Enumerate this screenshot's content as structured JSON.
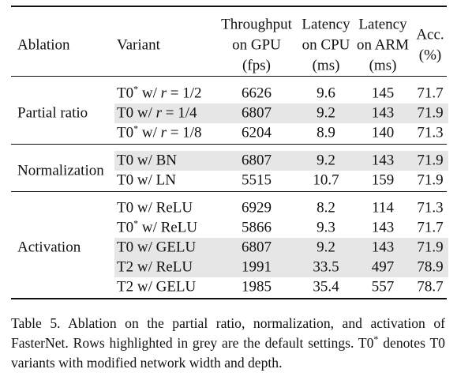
{
  "table": {
    "header": {
      "ablation": "Ablation",
      "variant": "Variant",
      "columns": [
        [
          "Throughput",
          "on GPU",
          "(fps)"
        ],
        [
          "Latency",
          "on CPU",
          "(ms)"
        ],
        [
          "Latency",
          "on ARM",
          "(ms)"
        ],
        [
          "Acc.",
          "(%)"
        ]
      ]
    },
    "groups": [
      {
        "name": "Partial ratio",
        "rows": [
          {
            "variant": {
              "base": "T0",
              "sup": "*",
              "text": "w/",
              "math": "r = 1/2"
            },
            "values": [
              6626,
              9.6,
              145,
              71.7
            ]
          },
          {
            "variant": {
              "base": "T0",
              "text": "w/",
              "math": "r = 1/4"
            },
            "values": [
              6807,
              9.2,
              143,
              71.9
            ],
            "default": true
          },
          {
            "variant": {
              "base": "T0",
              "sup": "*",
              "text": "w/",
              "math": "r = 1/8"
            },
            "values": [
              6204,
              8.9,
              140,
              71.3
            ]
          }
        ]
      },
      {
        "name": "Normalization",
        "rows": [
          {
            "variant": {
              "base": "T0",
              "text": "w/ BN"
            },
            "values": [
              6807,
              9.2,
              143,
              71.9
            ],
            "default": true
          },
          {
            "variant": {
              "base": "T0",
              "text": "w/ LN"
            },
            "values": [
              5515,
              10.7,
              159,
              71.9
            ]
          }
        ]
      },
      {
        "name": "Activation",
        "rows": [
          {
            "variant": {
              "base": "T0",
              "text": "w/ ReLU"
            },
            "values": [
              6929,
              8.2,
              114,
              71.3
            ]
          },
          {
            "variant": {
              "base": "T0",
              "sup": "*",
              "text": "w/ ReLU"
            },
            "values": [
              5866,
              9.3,
              143,
              71.7
            ]
          },
          {
            "variant": {
              "base": "T0",
              "text": "w/ GELU"
            },
            "values": [
              6807,
              9.2,
              143,
              71.9
            ],
            "default": true
          },
          {
            "variant": {
              "base": "T2",
              "text": "w/ ReLU"
            },
            "values": [
              1991,
              33.5,
              497,
              78.9
            ],
            "default": true
          },
          {
            "variant": {
              "base": "T2",
              "text": "w/ GELU"
            },
            "values": [
              1985,
              35.4,
              557,
              78.7
            ]
          }
        ]
      }
    ]
  },
  "caption": {
    "before": "Table 5. Ablation on the partial ratio, normalization, and activation of FasterNet. Rows highlighted in grey are the default settings. T0",
    "sup": "*",
    "after": " denotes T0 variants with modified network width and depth."
  }
}
